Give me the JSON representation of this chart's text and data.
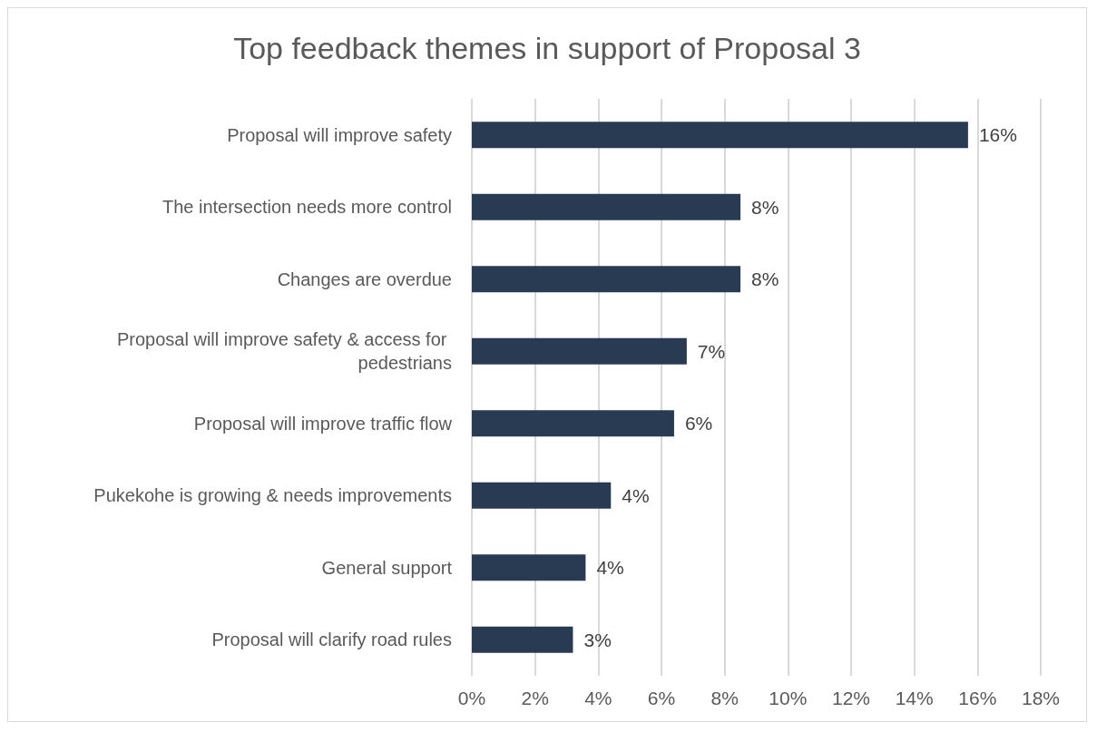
{
  "chart_data": {
    "type": "bar",
    "orientation": "horizontal",
    "title": "Top feedback themes in support of Proposal 3",
    "categories": [
      "Proposal will improve safety",
      "The intersection needs more control",
      "Changes are overdue",
      "Proposal will improve safety & access for pedestrians",
      "Proposal will improve traffic flow",
      "Pukekohe is growing & needs improvements",
      "General support",
      "Proposal will clarify road rules"
    ],
    "values": [
      15.7,
      8.5,
      8.5,
      6.8,
      6.4,
      4.4,
      3.6,
      3.2
    ],
    "value_labels": [
      "16%",
      "8%",
      "8%",
      "7%",
      "6%",
      "4%",
      "4%",
      "3%"
    ],
    "color": "#283b52",
    "xlim": [
      0,
      18
    ],
    "xticks": [
      {
        "value": 0,
        "label": "0%"
      },
      {
        "value": 2,
        "label": "2%"
      },
      {
        "value": 4,
        "label": "4%"
      },
      {
        "value": 6,
        "label": "6%"
      },
      {
        "value": 8,
        "label": "8%"
      },
      {
        "value": 10,
        "label": "10%"
      },
      {
        "value": 12,
        "label": "12%"
      },
      {
        "value": 14,
        "label": "14%"
      },
      {
        "value": 16,
        "label": "16%"
      },
      {
        "value": 18,
        "label": "18%"
      }
    ],
    "grid": "x"
  }
}
